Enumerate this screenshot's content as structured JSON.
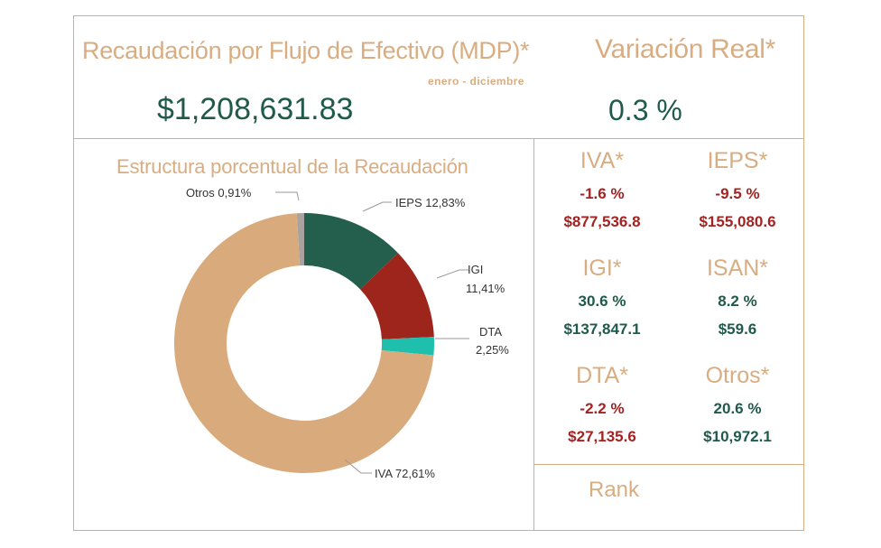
{
  "header": {
    "title": "Recaudación por Flujo de Efectivo (MDP)*",
    "period": "enero - diciembre",
    "total_value": "$1,208,631.83",
    "variation_title": "Variación Real*",
    "variation_value": "0.3 %"
  },
  "chart_data": {
    "type": "pie",
    "variant": "donut",
    "title": "Estructura porcentual de la Recaudación",
    "slices": [
      {
        "name": "Otros",
        "value": 0.91,
        "label": "Otros 0,91%",
        "color": "#a8a39f"
      },
      {
        "name": "IEPS",
        "value": 12.83,
        "label": "IEPS 12,83%",
        "color": "#245e4c"
      },
      {
        "name": "IGI",
        "value": 11.41,
        "label_line1": "IGI",
        "label_line2": "11,41%",
        "color": "#9e251c"
      },
      {
        "name": "DTA",
        "value": 2.25,
        "label_line1": "DTA",
        "label_line2": "2,25%",
        "color": "#1fbfae"
      },
      {
        "name": "IVA",
        "value": 72.61,
        "label": "IVA 72,61%",
        "color": "#d9ab7c"
      }
    ]
  },
  "cards": [
    {
      "title": "IVA*",
      "pct": "-1.6 %",
      "amount": "$877,536.8",
      "sign": "neg"
    },
    {
      "title": "IEPS*",
      "pct": "-9.5 %",
      "amount": "$155,080.6",
      "sign": "neg"
    },
    {
      "title": "IGI*",
      "pct": "30.6 %",
      "amount": "$137,847.1",
      "sign": "pos"
    },
    {
      "title": "ISAN*",
      "pct": "8.2 %",
      "amount": "$59.6",
      "sign": "pos"
    },
    {
      "title": "DTA*",
      "pct": "-2.2 %",
      "amount": "$27,135.6",
      "sign": "neg"
    },
    {
      "title": "Otros*",
      "pct": "20.6 %",
      "amount": "$10,972.1",
      "sign": "pos"
    }
  ],
  "rank": {
    "label": "Rank"
  }
}
